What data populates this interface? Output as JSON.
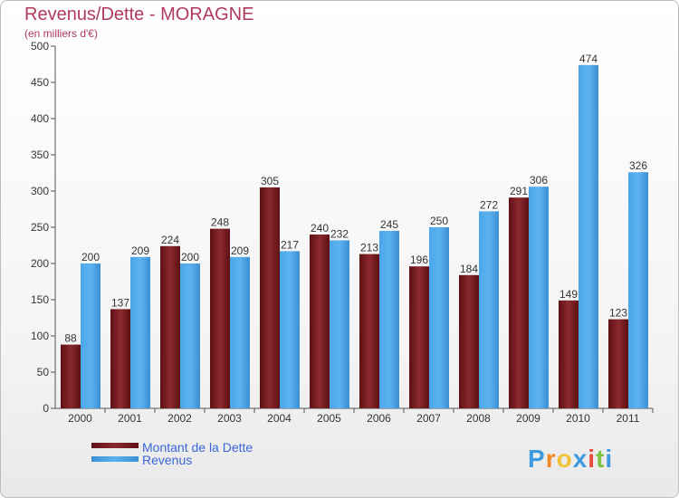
{
  "title": "Revenus/Dette - MORAGNE",
  "subtitle": "(en milliers d'€)",
  "brand": {
    "letters": [
      "P",
      "r",
      "o",
      "x",
      "i",
      "t",
      "i"
    ],
    "colors": [
      "#3e9be0",
      "#f08a24",
      "#f2c23a",
      "#3e9be0",
      "#e94b3c",
      "#7dc242",
      "#3e9be0"
    ]
  },
  "chart_data": {
    "type": "bar",
    "title": "Revenus/Dette - MORAGNE",
    "ylabel": "(en milliers d'€)",
    "xlabel": "",
    "categories": [
      "2000",
      "2001",
      "2002",
      "2003",
      "2004",
      "2005",
      "2006",
      "2007",
      "2008",
      "2009",
      "2010",
      "2011"
    ],
    "series": [
      {
        "name": "Montant de la Dette",
        "color": "#7a1c20",
        "values": [
          88,
          137,
          224,
          248,
          305,
          240,
          213,
          196,
          184,
          291,
          149,
          123
        ]
      },
      {
        "name": "Revenus",
        "color": "#4aa3e4",
        "values": [
          200,
          209,
          200,
          209,
          217,
          232,
          245,
          250,
          272,
          306,
          474,
          326
        ]
      }
    ],
    "ylim": [
      0,
      500
    ],
    "yticks": [
      0,
      50,
      100,
      150,
      200,
      250,
      300,
      350,
      400,
      450,
      500
    ],
    "grid": false,
    "legend": "bottom-left"
  }
}
